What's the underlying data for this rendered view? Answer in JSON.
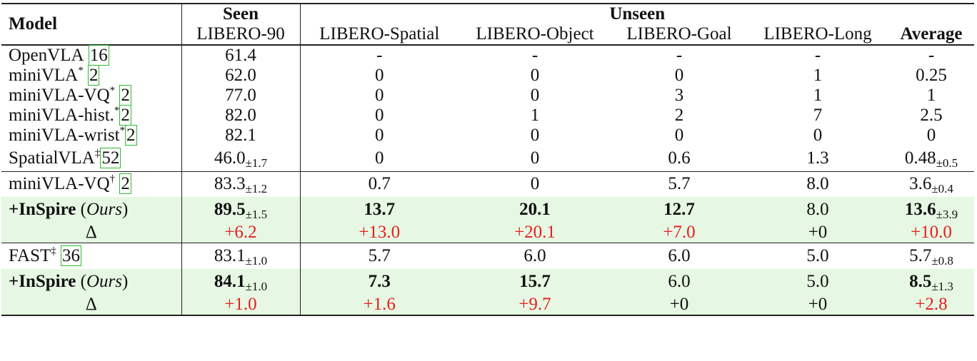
{
  "header": {
    "model": "Model",
    "seen": "Seen",
    "unseen": "Unseen",
    "columns": [
      "LIBERO-90",
      "LIBERO-Spatial",
      "LIBERO-Object",
      "LIBERO-Goal",
      "LIBERO-Long",
      "Average"
    ]
  },
  "rows": [
    {
      "name": "OpenVLA",
      "sup": "",
      "ref": "16",
      "cells": [
        "61.4",
        "-",
        "-",
        "-",
        "-",
        "-"
      ],
      "subs": [
        "",
        "",
        "",
        "",
        "",
        ""
      ]
    },
    {
      "name": "miniVLA",
      "sup": "*",
      "ref": "2",
      "cells": [
        "62.0",
        "0",
        "0",
        "0",
        "1",
        "0.25"
      ],
      "subs": [
        "",
        "",
        "",
        "",
        "",
        ""
      ]
    },
    {
      "name": "miniVLA-VQ",
      "sup": "*",
      "ref": "2",
      "cells": [
        "77.0",
        "0",
        "0",
        "3",
        "1",
        "1"
      ],
      "subs": [
        "",
        "",
        "",
        "",
        "",
        ""
      ]
    },
    {
      "name": "miniVLA-hist.",
      "sup": "*",
      "ref": "2",
      "cells": [
        "82.0",
        "0",
        "1",
        "2",
        "7",
        "2.5"
      ],
      "subs": [
        "",
        "",
        "",
        "",
        "",
        ""
      ]
    },
    {
      "name": "miniVLA-wrist",
      "sup": "*",
      "ref": "2",
      "cells": [
        "82.1",
        "0",
        "0",
        "0",
        "0",
        "0"
      ],
      "subs": [
        "",
        "",
        "",
        "",
        "",
        ""
      ]
    },
    {
      "name": "SpatialVLA",
      "sup": "‡",
      "ref": "52",
      "cells": [
        "46.0",
        "0",
        "0",
        "0.6",
        "1.3",
        "0.48"
      ],
      "subs": [
        "±1.7",
        "",
        "",
        "",
        "",
        "±0.5"
      ]
    },
    {
      "name": "miniVLA-VQ",
      "sup": "†",
      "ref": "2",
      "cells": [
        "83.3",
        "0.7",
        "0",
        "5.7",
        "8.0",
        "3.6"
      ],
      "subs": [
        "±1.2",
        "",
        "",
        "",
        "",
        "±0.4"
      ]
    },
    {
      "name": "+InSpire",
      "method_note": "Ours",
      "cells": [
        "89.5",
        "13.7",
        "20.1",
        "12.7",
        "8.0",
        "13.6"
      ],
      "subs": [
        "±1.5",
        "",
        "",
        "",
        "",
        "±3.9"
      ]
    },
    {
      "name": "Δ",
      "cells": [
        "+6.2",
        "+13.0",
        "+20.1",
        "+7.0",
        "+0",
        "+10.0"
      ]
    },
    {
      "name": "FAST",
      "sup": "‡",
      "ref": "36",
      "cells": [
        "83.1",
        "5.7",
        "6.0",
        "6.0",
        "5.0",
        "5.7"
      ],
      "subs": [
        "±1.0",
        "",
        "",
        "",
        "",
        "±0.8"
      ]
    },
    {
      "name": "+InSpire",
      "method_note": "Ours",
      "cells": [
        "84.1",
        "7.3",
        "15.7",
        "6.0",
        "5.0",
        "8.5"
      ],
      "subs": [
        "±1.0",
        "",
        "",
        "",
        "",
        "±1.3"
      ]
    },
    {
      "name": "Δ",
      "cells": [
        "+1.0",
        "+1.6",
        "+9.7",
        "+0",
        "+0",
        "+2.8"
      ]
    }
  ],
  "colors": {
    "highlight": "#e6f7e3",
    "delta_positive": "#e61e1e",
    "ref_box": "#2dbb2d"
  }
}
